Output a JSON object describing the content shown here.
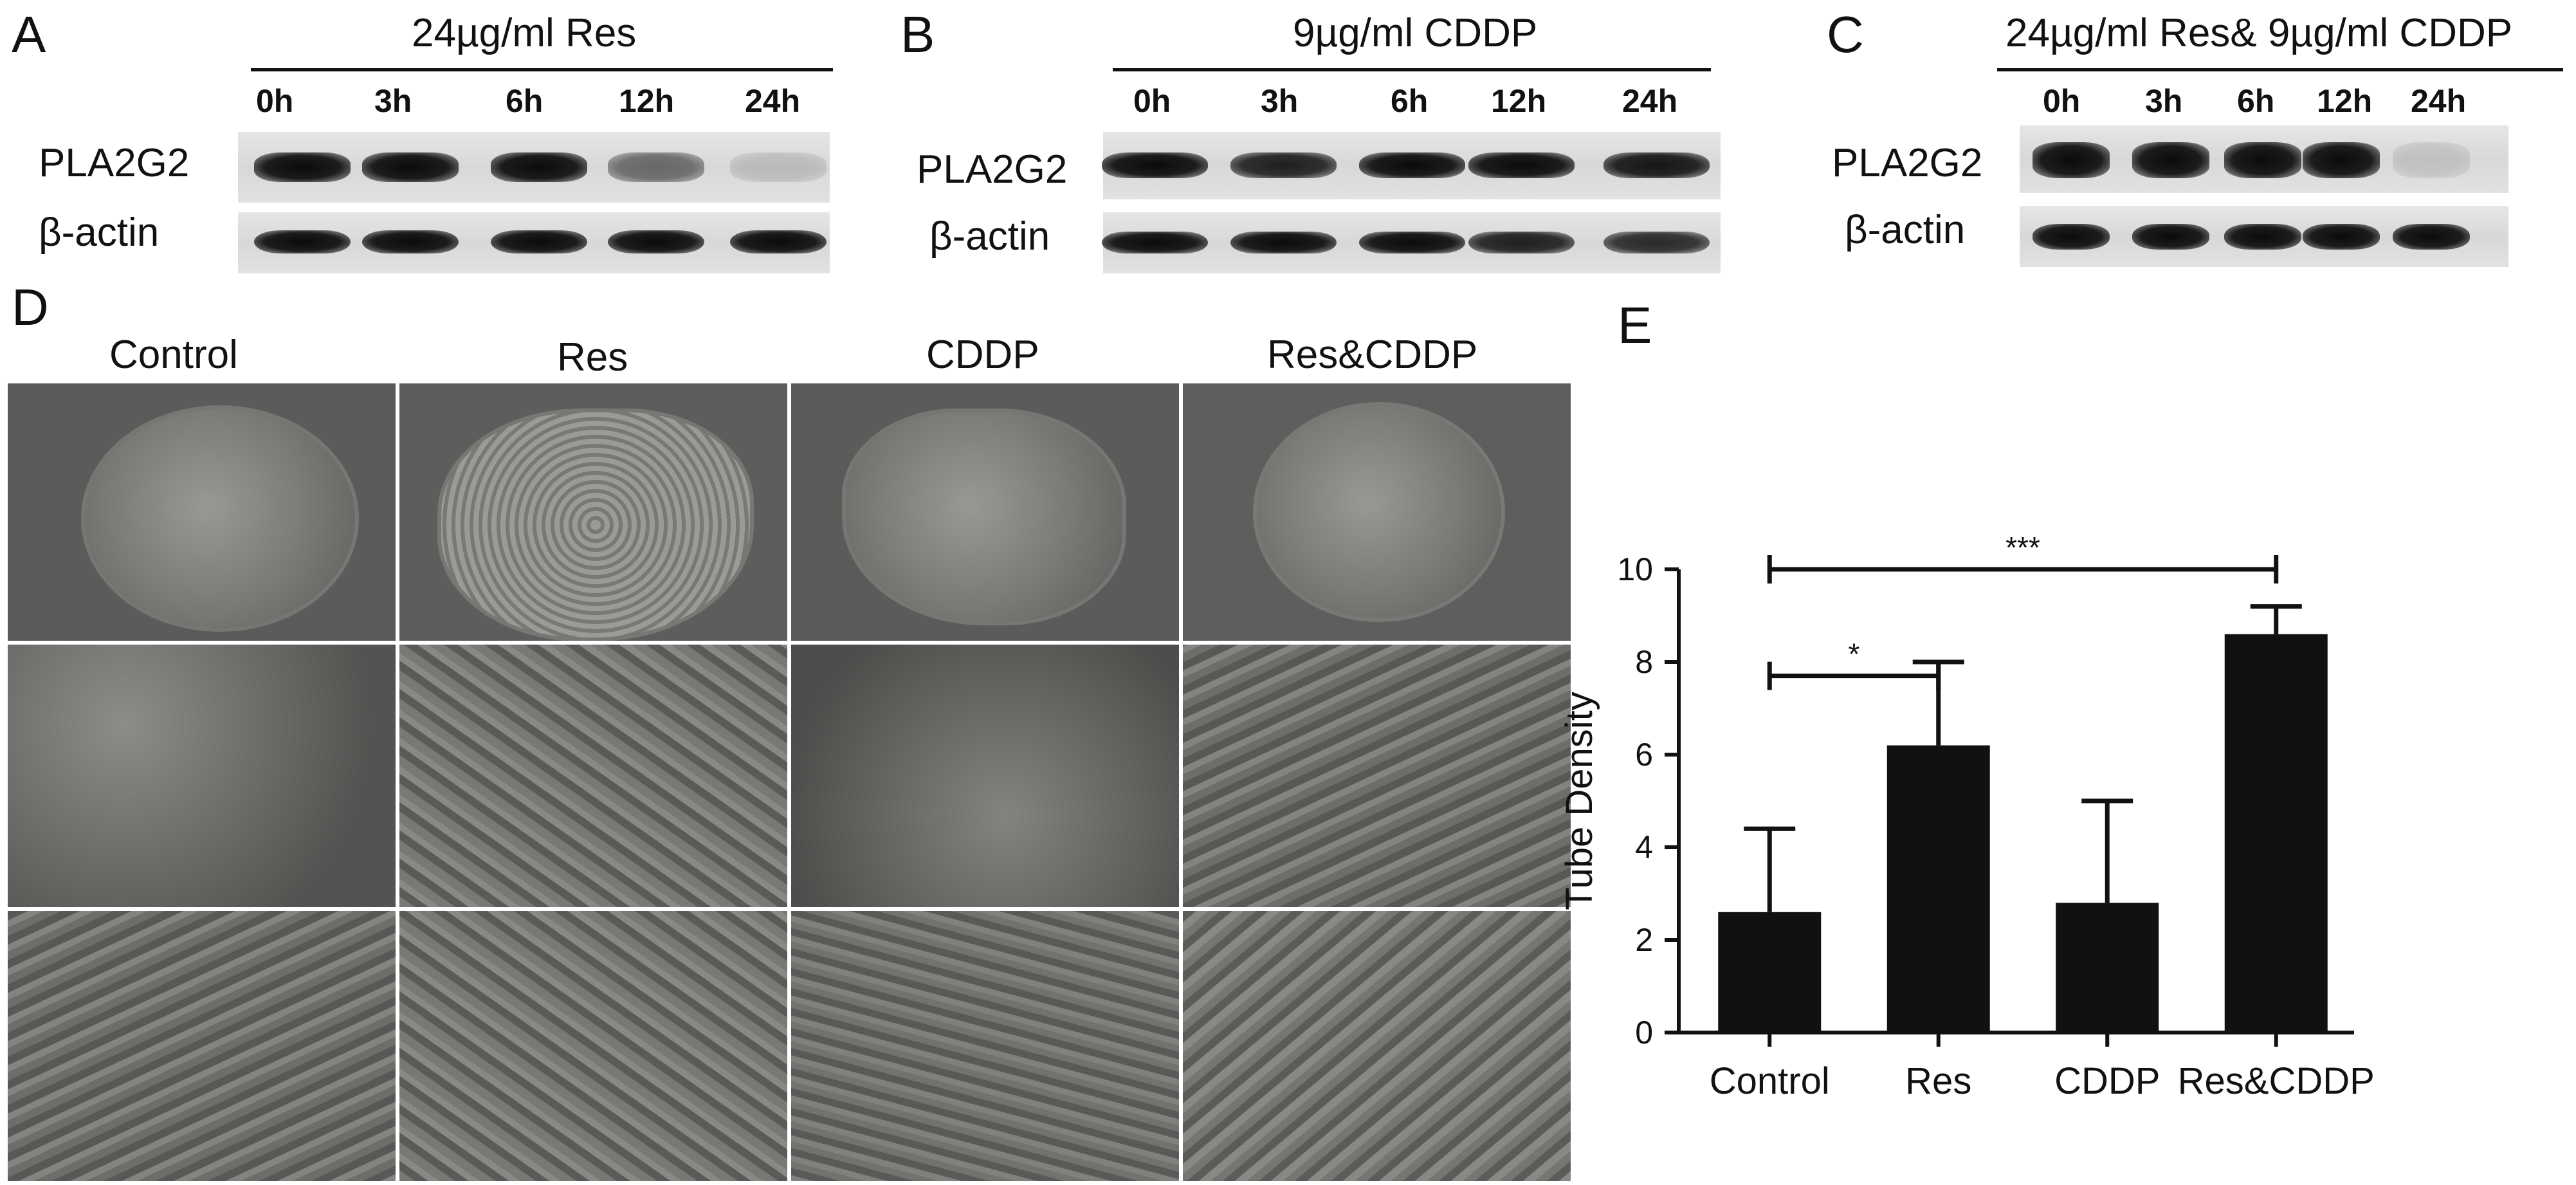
{
  "panelA": {
    "letter": "A",
    "treatment": "24µg/ml Res",
    "lanes": [
      "0h",
      "3h",
      "6h",
      "12h",
      "24h"
    ],
    "rows": [
      "PLA2G2",
      "β-actin"
    ],
    "pla2g2_intensity": [
      1,
      1,
      1,
      0.55,
      0.15
    ],
    "actin_intensity": [
      1,
      1,
      1,
      1,
      1
    ]
  },
  "panelB": {
    "letter": "B",
    "treatment": "9µg/ml CDDP",
    "lanes": [
      "0h",
      "3h",
      "6h",
      "12h",
      "24h"
    ],
    "rows": [
      "PLA2G2",
      "β-actin"
    ],
    "pla2g2_intensity": [
      1,
      0.9,
      1,
      1,
      0.95
    ],
    "actin_intensity": [
      1,
      1,
      1,
      0.9,
      0.85
    ]
  },
  "panelC": {
    "letter": "C",
    "treatment": "24µg/ml Res& 9µg/ml CDDP",
    "lanes": [
      "0h",
      "3h",
      "6h",
      "12h",
      "24h"
    ],
    "rows": [
      "PLA2G2",
      "β-actin"
    ],
    "pla2g2_intensity": [
      1,
      1,
      1,
      1,
      0.12
    ],
    "actin_intensity": [
      1,
      1,
      1,
      1,
      1
    ]
  },
  "panelD": {
    "letter": "D",
    "columns": [
      "Control",
      "Res",
      "CDDP",
      "Res&CDDP"
    ]
  },
  "panelE": {
    "letter": "E"
  },
  "chart_data": {
    "type": "bar",
    "categories": [
      "Control",
      "Res",
      "CDDP",
      "Res&CDDP"
    ],
    "values": [
      2.6,
      6.2,
      2.8,
      8.6
    ],
    "errors": [
      1.8,
      1.8,
      2.2,
      0.6
    ],
    "ylabel": "Tube Density",
    "xlabel": "",
    "ylim": [
      0,
      10
    ],
    "yticks": [
      0,
      2,
      4,
      6,
      8,
      10
    ],
    "significance": [
      {
        "from": "Control",
        "to": "Res",
        "label": "*"
      },
      {
        "from": "Control",
        "to": "Res&CDDP",
        "label": "***"
      }
    ]
  }
}
